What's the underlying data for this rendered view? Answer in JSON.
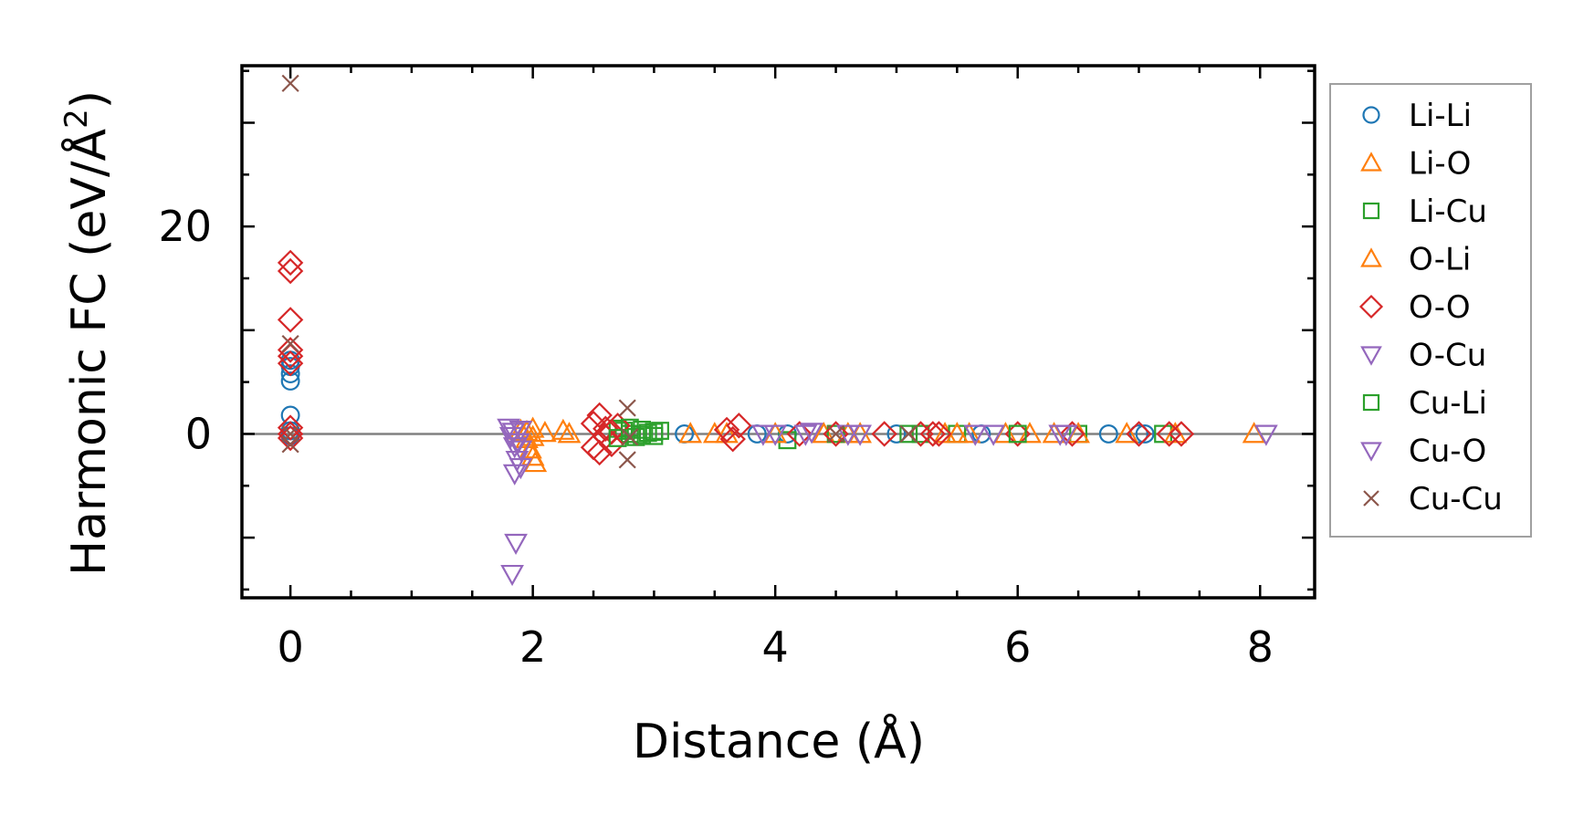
{
  "chart_data": {
    "type": "scatter",
    "xlabel": "Distance (Å)",
    "ylabel_main": "Harmonic FC (eV/Å",
    "ylabel_sup": "2",
    "ylabel_end": ")",
    "xlim": [
      -0.4,
      8.45
    ],
    "ylim": [
      -15.8,
      35.5
    ],
    "xticks": [
      0,
      2,
      4,
      6,
      8
    ],
    "yticks": [
      0,
      20
    ],
    "zero_line": true,
    "legend_position": "outside-right",
    "series": [
      {
        "name": "Li-Li",
        "marker": "circle",
        "color": "#1f77b4",
        "x": [
          0,
          0,
          0,
          0,
          0,
          0,
          0,
          3.25,
          3.85,
          4.1,
          5.0,
          5.7,
          6.75,
          7.0,
          7.05
        ],
        "y": [
          5.1,
          5.8,
          6.5,
          7.1,
          1.8,
          0.3,
          -0.2,
          0.0,
          0.0,
          0.0,
          0.0,
          0.0,
          0.0,
          0.0,
          0.0
        ]
      },
      {
        "name": "Li-O",
        "marker": "triangle-up",
        "color": "#ff7f0e",
        "x": [
          1.95,
          1.98,
          2.0,
          2.02,
          1.95,
          2.0,
          2.25,
          3.3,
          3.6,
          4.4,
          4.6,
          5.4,
          5.6,
          6.1,
          6.3,
          6.9,
          7.95
        ],
        "y": [
          -0.5,
          -1.5,
          -2.2,
          -2.8,
          0.2,
          0.5,
          0.3,
          0.0,
          0.0,
          0.0,
          0.0,
          0.0,
          0.0,
          0.0,
          0.0,
          0.0,
          0.0
        ]
      },
      {
        "name": "Li-Cu",
        "marker": "square",
        "color": "#2ca02c",
        "x": [
          2.7,
          2.75,
          2.8,
          2.85,
          2.9,
          2.95,
          3.0,
          3.05,
          4.1,
          4.5,
          5.2,
          5.5,
          6.5,
          7.2
        ],
        "y": [
          0.5,
          0.3,
          0.0,
          -0.3,
          0.4,
          0.1,
          -0.2,
          0.3,
          -0.6,
          0.0,
          0.0,
          0.0,
          0.0,
          0.0
        ]
      },
      {
        "name": "O-Li",
        "marker": "triangle-up",
        "color": "#ff7f0e",
        "x": [
          1.9,
          2.0,
          2.1,
          2.3,
          3.5,
          4.0,
          4.7,
          5.5,
          5.9,
          6.5,
          7.3
        ],
        "y": [
          0.3,
          -0.3,
          0.1,
          0.0,
          0.0,
          0.0,
          0.0,
          0.0,
          0.0,
          0.0,
          0.0
        ]
      },
      {
        "name": "O-O",
        "marker": "diamond",
        "color": "#d62728",
        "x": [
          0,
          0,
          0,
          0,
          0,
          0,
          0,
          0,
          0,
          2.5,
          2.55,
          2.6,
          2.65,
          2.55,
          2.6,
          2.5,
          2.7,
          2.65,
          3.6,
          3.7,
          3.65,
          4.2,
          4.5,
          4.9,
          5.2,
          5.3,
          5.35,
          6.0,
          6.45,
          7.0,
          7.25,
          7.35
        ],
        "y": [
          16.5,
          15.7,
          11.0,
          8.1,
          7.5,
          6.8,
          0.6,
          0.0,
          -0.4,
          1.0,
          1.8,
          0.5,
          -1.0,
          -1.8,
          -0.3,
          -1.3,
          0.8,
          0.2,
          0.4,
          0.8,
          -0.5,
          0.0,
          0.0,
          0.0,
          0.0,
          0.0,
          0.0,
          0.0,
          0.0,
          0.0,
          0.0,
          0.0
        ]
      },
      {
        "name": "O-Cu",
        "marker": "triangle-down",
        "color": "#9467bd",
        "x": [
          1.8,
          1.82,
          1.85,
          1.87,
          1.9,
          1.88,
          1.85,
          1.9,
          1.83,
          1.86,
          3.9,
          4.3,
          4.7,
          5.8,
          6.35
        ],
        "y": [
          0.6,
          -0.2,
          -1.2,
          -2.5,
          -3.2,
          -0.8,
          -3.8,
          0.4,
          -13.5,
          -10.5,
          0.0,
          0.2,
          0.0,
          0.0,
          0.0
        ]
      },
      {
        "name": "Cu-Li",
        "marker": "square",
        "color": "#2ca02c",
        "x": [
          2.7,
          2.8,
          2.9,
          3.0,
          5.1,
          6.0
        ],
        "y": [
          -0.4,
          0.6,
          -0.1,
          0.2,
          0.0,
          0.0
        ]
      },
      {
        "name": "Cu-O",
        "marker": "triangle-down",
        "color": "#9467bd",
        "x": [
          1.84,
          1.9,
          4.0,
          4.25,
          4.6,
          5.65,
          6.4,
          8.05
        ],
        "y": [
          0.2,
          -1.5,
          0.0,
          0.0,
          0.0,
          0.0,
          0.0,
          0.0
        ]
      },
      {
        "name": "Cu-Cu",
        "marker": "x",
        "color": "#8c564b",
        "x": [
          0,
          0,
          0,
          0,
          2.78,
          2.8,
          2.78,
          4.5,
          5.1
        ],
        "y": [
          33.8,
          8.7,
          0.0,
          -1.0,
          2.5,
          -0.3,
          -2.5,
          0.0,
          0.0
        ]
      }
    ]
  }
}
